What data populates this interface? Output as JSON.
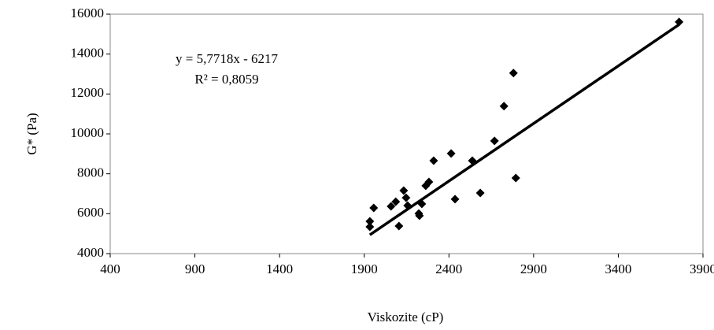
{
  "chart_data": {
    "type": "scatter",
    "x_label": "Viskozite (cP)",
    "y_label": "G* (Pa)",
    "annotations": [
      "y = 5,7718x - 6217",
      "R² = 0,8059"
    ],
    "x": [
      1933,
      1933,
      1956,
      2105,
      2058,
      2086,
      2133,
      2147,
      2156,
      2222,
      2226,
      2240,
      2263,
      2282,
      2310,
      2413,
      2436,
      2538,
      2585,
      2669,
      2725,
      2781,
      2795,
      3759
    ],
    "values": [
      5343,
      5620,
      6290,
      5380,
      6370,
      6600,
      7160,
      6800,
      6410,
      6010,
      5900,
      6490,
      7400,
      7590,
      8660,
      9020,
      6730,
      8660,
      7040,
      9650,
      11390,
      13050,
      7790,
      15610
    ],
    "color": "#000000",
    "trendline": {
      "x": [
        1933,
        3759
      ],
      "values": [
        4940,
        15480
      ],
      "color": "#000000"
    },
    "xlim": [
      400,
      3900
    ],
    "xticks": [
      400,
      900,
      1400,
      1900,
      2400,
      2900,
      3400,
      3900
    ],
    "ylim": [
      4000,
      16000
    ],
    "yticks": [
      4000,
      6000,
      8000,
      10000,
      12000,
      14000,
      16000
    ],
    "grid": false
  }
}
